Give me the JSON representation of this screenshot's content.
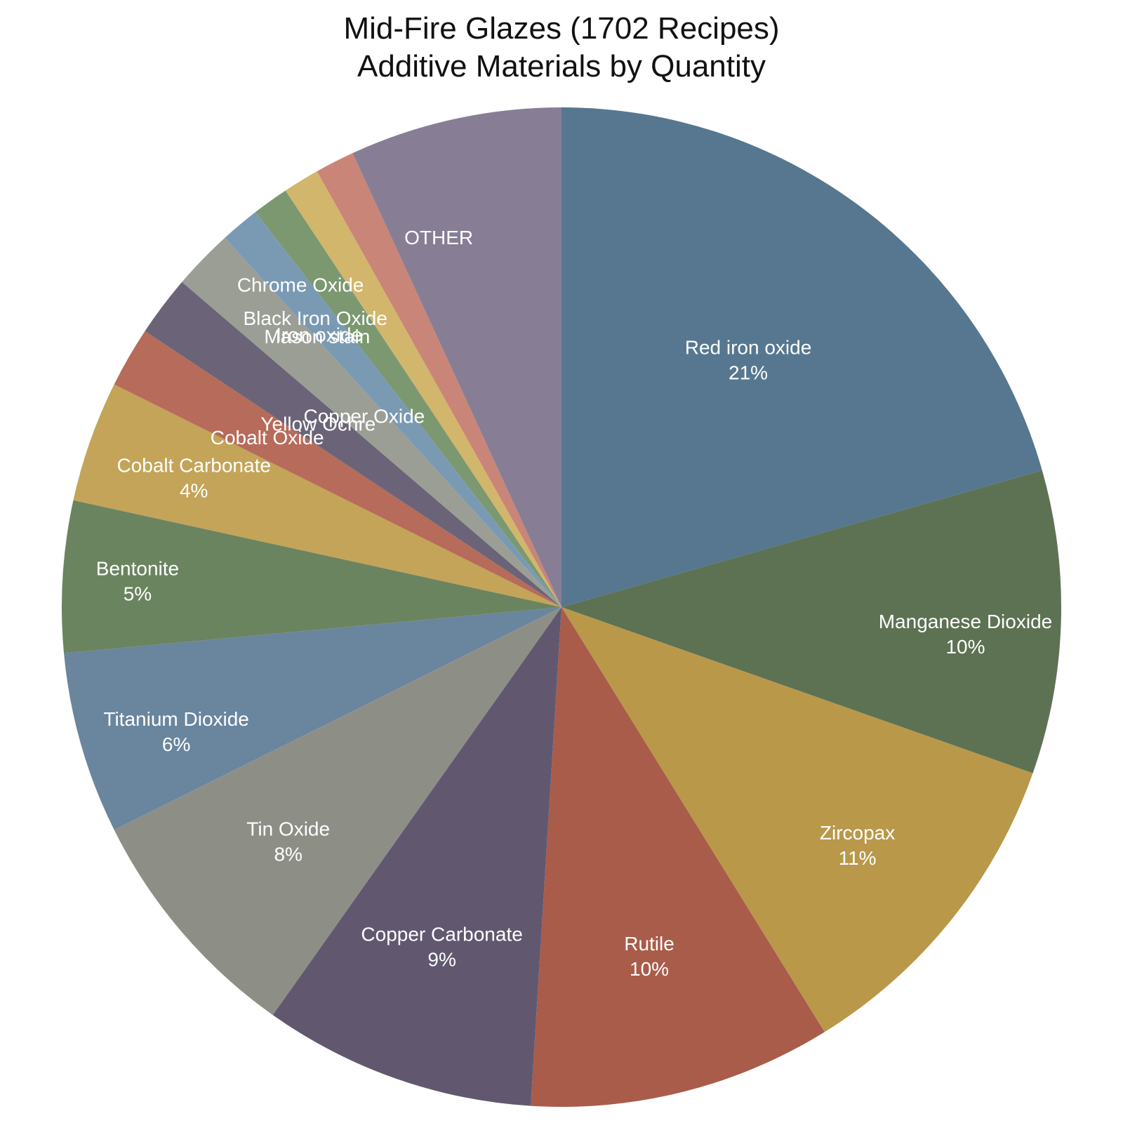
{
  "chart_data": {
    "type": "pie",
    "title": "Mid-Fire Glazes (1702 Recipes)",
    "subtitle": "Additive Materials by Quantity",
    "start_angle_deg": 0,
    "direction": "clockwise",
    "slices": [
      {
        "label": "Red iron oxide",
        "value": 21,
        "pct_label": "21%",
        "color": "#56778f"
      },
      {
        "label": "Manganese Dioxide",
        "value": 10,
        "pct_label": "10%",
        "color": "#5d7253"
      },
      {
        "label": "Zircopax",
        "value": 11,
        "pct_label": "11%",
        "color": "#b9984a"
      },
      {
        "label": "Rutile",
        "value": 10,
        "pct_label": "10%",
        "color": "#a95c4a"
      },
      {
        "label": "Copper Carbonate",
        "value": 9,
        "pct_label": "9%",
        "color": "#615870"
      },
      {
        "label": "Tin Oxide",
        "value": 8,
        "pct_label": "8%",
        "color": "#8d8f87"
      },
      {
        "label": "Titanium Dioxide",
        "value": 6,
        "pct_label": "6%",
        "color": "#6a859e"
      },
      {
        "label": "Bentonite",
        "value": 5,
        "pct_label": "5%",
        "color": "#6b8460"
      },
      {
        "label": "Cobalt Carbonate",
        "value": 4,
        "pct_label": "4%",
        "color": "#c4a458"
      },
      {
        "label": "Cobalt Oxide",
        "value": 2,
        "pct_label": "",
        "color": "#b76b5a"
      },
      {
        "label": "Yellow Ochre",
        "value": 2,
        "pct_label": "",
        "color": "#6b6478"
      },
      {
        "label": "Copper Oxide",
        "value": 2,
        "pct_label": "",
        "color": "#9b9e95"
      },
      {
        "label": "Mason stain",
        "value": 1.3,
        "pct_label": "",
        "color": "#7a9ab4"
      },
      {
        "label": "Iron oxide",
        "value": 1.2,
        "pct_label": "",
        "color": "#7b9870"
      },
      {
        "label": "Black Iron Oxide",
        "value": 1.2,
        "pct_label": "",
        "color": "#d2b66c"
      },
      {
        "label": "Chrome Oxide",
        "value": 1.3,
        "pct_label": "",
        "color": "#c98577"
      },
      {
        "label": "OTHER",
        "value": 7,
        "pct_label": "",
        "color": "#877e96"
      }
    ]
  }
}
